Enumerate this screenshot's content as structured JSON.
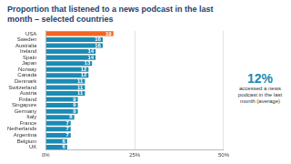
{
  "chart_data": {
    "type": "bar",
    "title": "Proportion that listened to a news podcast in the last month – selected countries",
    "orientation": "horizontal",
    "categories": [
      "USA",
      "Sweden",
      "Australia",
      "Ireland",
      "Spain",
      "Japan",
      "Norway",
      "Canada",
      "Denmark",
      "Switzerland",
      "Austria",
      "Finland",
      "Singapore",
      "Germany",
      "Italy",
      "France",
      "Netherlands",
      "Argentina",
      "Belgium",
      "UK"
    ],
    "values": [
      19,
      16,
      16,
      14,
      14,
      13,
      12,
      12,
      11,
      11,
      11,
      9,
      9,
      9,
      8,
      7,
      7,
      7,
      6,
      6
    ],
    "colors": [
      "#f26522",
      "#1b8bb4",
      "#1b8bb4",
      "#1b8bb4",
      "#1b8bb4",
      "#1b8bb4",
      "#1b8bb4",
      "#1b8bb4",
      "#1b8bb4",
      "#1b8bb4",
      "#1b8bb4",
      "#1b8bb4",
      "#1b8bb4",
      "#1b8bb4",
      "#1b8bb4",
      "#1b8bb4",
      "#1b8bb4",
      "#1b8bb4",
      "#1b8bb4",
      "#1b8bb4"
    ],
    "xlim": [
      0,
      50
    ],
    "xticks": [
      {
        "value": 0,
        "label": "0%"
      },
      {
        "value": 25,
        "label": "25%"
      },
      {
        "value": 50,
        "label": "50%"
      }
    ],
    "grid": true,
    "data_labels": true,
    "annotations": [
      "12%",
      "accessed a news podcast in the last month (average)"
    ]
  }
}
